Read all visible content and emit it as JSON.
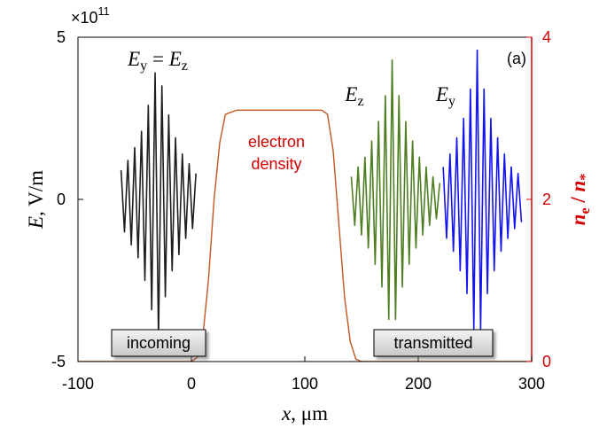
{
  "chart_data": {
    "type": "line",
    "multiplier": [
      {
        "text": "×10",
        "style": "normal"
      },
      {
        "text": "11",
        "style": "sup"
      }
    ],
    "x_label": [
      {
        "text": "x",
        "style": "italic"
      },
      {
        "text": ", μm",
        "style": "normal"
      }
    ],
    "y_label": [
      {
        "text": "E",
        "style": "italic"
      },
      {
        "text": ", V/m",
        "style": "normal"
      }
    ],
    "y2_label": [
      {
        "text": "n",
        "style": "italic"
      },
      {
        "text": "e",
        "style": "sub"
      },
      {
        "text": " / ",
        "style": "normal"
      },
      {
        "text": "n",
        "style": "italic"
      },
      {
        "text": "*",
        "style": "sub"
      }
    ],
    "y2_color": "#d40000",
    "xlim": [
      -100,
      300
    ],
    "xticks": [
      -100,
      0,
      100,
      200,
      300
    ],
    "ylim": [
      -5,
      5
    ],
    "yticks": [
      -5,
      0,
      5
    ],
    "y2lim": [
      0,
      4
    ],
    "y2ticks": [
      0,
      2,
      4
    ],
    "grid": false,
    "series": [
      {
        "color": "#1e1e1e",
        "x": [
          -62,
          -59,
          -56,
          -53,
          -50,
          -47,
          -44,
          -41,
          -38,
          -35,
          -32,
          -29,
          -26,
          -23,
          -20,
          -17,
          -14,
          -11,
          -8,
          -5,
          -2,
          1,
          4
        ],
        "values": [
          0.9,
          -1.0,
          1.2,
          -1.4,
          1.6,
          -1.8,
          2.1,
          -2.5,
          2.9,
          -3.4,
          3.9,
          -4.3,
          3.5,
          -3.0,
          2.6,
          -2.2,
          1.9,
          -1.7,
          1.4,
          -1.2,
          1.1,
          -0.9,
          0.8
        ]
      },
      {
        "color": "#4f7d22",
        "x": [
          141,
          144,
          147,
          150,
          153,
          156,
          159,
          162,
          165,
          168,
          171,
          174,
          177,
          180,
          183,
          186,
          189,
          192,
          195,
          198,
          201,
          204,
          207,
          210,
          213,
          216,
          219
        ],
        "values": [
          0.7,
          -0.8,
          1.0,
          -1.1,
          1.3,
          -1.5,
          1.8,
          -2.0,
          2.4,
          -2.7,
          3.2,
          -3.7,
          4.3,
          -3.7,
          3.2,
          -2.7,
          2.4,
          -2.0,
          1.8,
          -1.5,
          1.3,
          -1.1,
          1.0,
          -0.8,
          0.7,
          -0.6,
          0.5
        ]
      },
      {
        "color": "#1414f0",
        "x": [
          222,
          225,
          228,
          231,
          234,
          237,
          240,
          243,
          246,
          249,
          252,
          255,
          258,
          261,
          264,
          267,
          270,
          273,
          276,
          279,
          282,
          285,
          288,
          291
        ],
        "values": [
          1.0,
          -1.2,
          1.4,
          -1.6,
          1.9,
          -2.2,
          2.5,
          -2.9,
          3.4,
          -4.0,
          4.6,
          -4.0,
          3.4,
          -2.9,
          2.5,
          -2.2,
          1.9,
          -1.6,
          1.4,
          -1.2,
          1.0,
          -0.9,
          0.8,
          -0.7
        ]
      },
      {
        "color": "#c4561e",
        "axis": "y2",
        "x": [
          -100,
          0,
          5,
          10,
          15,
          20,
          25,
          30,
          40,
          60,
          80,
          100,
          115,
          120,
          125,
          130,
          135,
          140,
          145,
          150,
          300
        ],
        "values": [
          0,
          0,
          0.05,
          0.3,
          1.0,
          2.0,
          2.7,
          3.05,
          3.1,
          3.1,
          3.1,
          3.1,
          3.1,
          3.05,
          2.6,
          1.7,
          0.8,
          0.25,
          0.03,
          0,
          0
        ]
      }
    ],
    "annotations": [
      {
        "text": [
          {
            "text": "E",
            "style": "italic"
          },
          {
            "text": "y",
            "style": "sub"
          },
          {
            "text": " = ",
            "style": "normal"
          },
          {
            "text": "E",
            "style": "italic"
          },
          {
            "text": "z",
            "style": "sub"
          }
        ],
        "color": "#000000"
      },
      {
        "text": [
          {
            "text": "E",
            "style": "italic"
          },
          {
            "text": "z",
            "style": "sub"
          }
        ],
        "color": "#000000"
      },
      {
        "text": [
          {
            "text": "E",
            "style": "italic"
          },
          {
            "text": "y",
            "style": "sub"
          }
        ],
        "color": "#000000"
      },
      {
        "text": [
          {
            "text": "(a)",
            "style": "normal"
          }
        ],
        "color": "#000000"
      },
      {
        "text": [
          {
            "text": "electron",
            "style": "normal"
          }
        ],
        "color": "#d40000"
      },
      {
        "text": [
          {
            "text": "density",
            "style": "normal"
          }
        ],
        "color": "#d40000"
      }
    ],
    "boxes": [
      "incoming",
      "transmitted"
    ]
  }
}
